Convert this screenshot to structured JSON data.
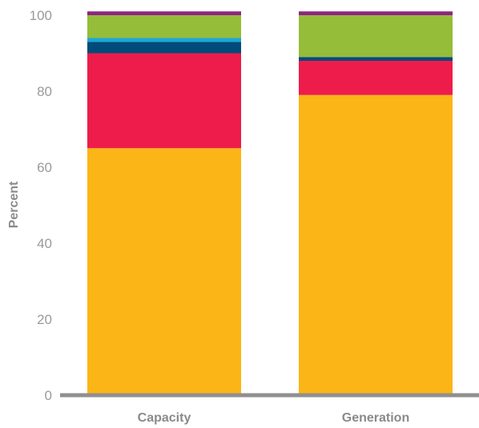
{
  "chart_data": {
    "type": "bar",
    "stacked": true,
    "categories": [
      "Capacity",
      "Generation"
    ],
    "ylabel": "Percent",
    "xlabel": "",
    "ylim": [
      0,
      100
    ],
    "yticks": [
      "0",
      "20",
      "40",
      "60",
      "80",
      "100"
    ],
    "grid": false,
    "series": [
      {
        "color": "#fbb516",
        "values": [
          65,
          79
        ]
      },
      {
        "color": "#ee1c4b",
        "values": [
          25,
          9
        ]
      },
      {
        "color": "#004b7a",
        "values": [
          3,
          1
        ]
      },
      {
        "color": "#1aa8d8",
        "values": [
          1,
          0
        ]
      },
      {
        "color": "#95bd3a",
        "values": [
          6,
          11
        ]
      },
      {
        "color": "#8e2483",
        "values": [
          1,
          1
        ]
      }
    ]
  }
}
